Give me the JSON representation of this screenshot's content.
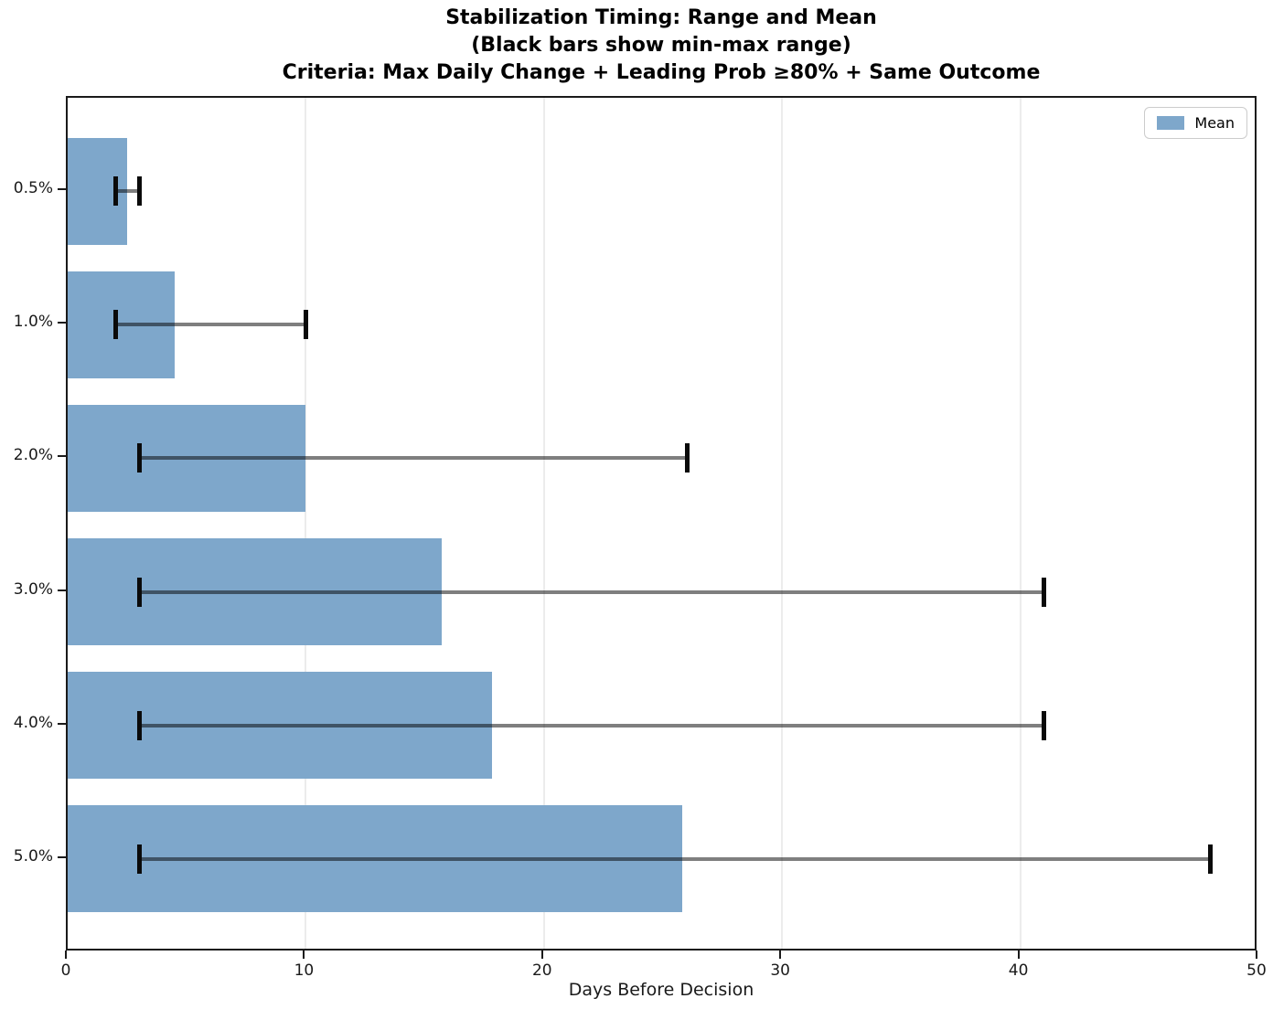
{
  "chart": {
    "title_lines": [
      "Stabilization Timing: Range and Mean",
      "(Black bars show min-max range)",
      "Criteria: Max Daily Change + Leading Prob ≥80% + Same Outcome"
    ],
    "xlabel": "Days Before Decision",
    "legend_label": "Mean"
  },
  "chart_data": {
    "type": "bar",
    "orientation": "horizontal",
    "title": "Stabilization Timing: Range and Mean\n(Black bars show min-max range)\nCriteria: Max Daily Change + Leading Prob ≥80% + Same Outcome",
    "categories": [
      "0.5%",
      "1.0%",
      "2.0%",
      "3.0%",
      "4.0%",
      "5.0%"
    ],
    "series": [
      {
        "name": "Mean",
        "values": [
          2.5,
          4.5,
          10.0,
          15.7,
          17.8,
          25.8
        ]
      }
    ],
    "error_range": {
      "label": "min-max range",
      "min": [
        2,
        2,
        3,
        3,
        3,
        3
      ],
      "max": [
        3,
        10,
        26,
        41,
        41,
        48
      ]
    },
    "xlabel": "Days Before Decision",
    "ylabel": "",
    "xlim": [
      0,
      50
    ],
    "xticks": [
      0,
      10,
      20,
      30,
      40,
      50
    ],
    "grid": true,
    "legend_position": "upper right",
    "colors": {
      "bar_fill": "#7ea7cb",
      "error_line": "rgba(0,0,0,0.5)",
      "error_cap": "#0a0a0a",
      "grid_line": "#ececec",
      "spine": "#1a1a1a"
    }
  }
}
